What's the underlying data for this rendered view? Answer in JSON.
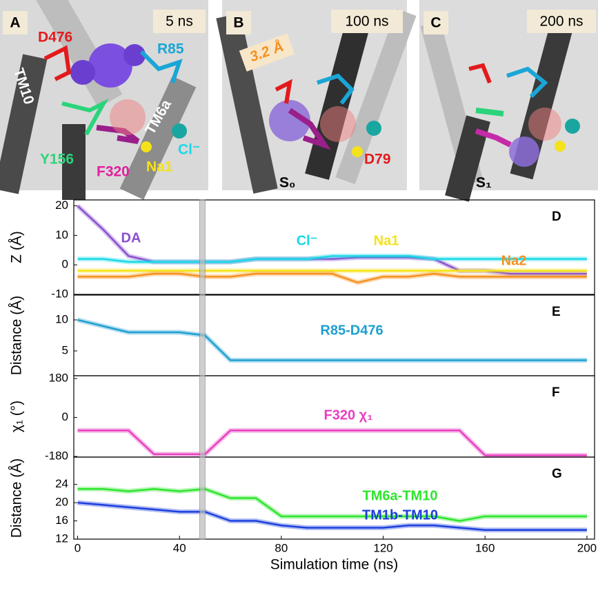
{
  "images": [
    {
      "letter": "A",
      "time": "5 ns",
      "labels": [
        "D476",
        "R85",
        "TM10",
        "TM6a",
        "Y156",
        "F320",
        "Na1",
        "Cl⁻"
      ]
    },
    {
      "letter": "B",
      "time": "100 ns",
      "labels": [
        "3.2 Å",
        "D79",
        "S₀"
      ]
    },
    {
      "letter": "C",
      "time": "200 ns",
      "labels": [
        "S₁"
      ]
    }
  ],
  "time_marker": 49,
  "chart_data": [
    {
      "type": "line",
      "panel": "D",
      "y_label": "Z (Å)",
      "xlim": [
        -1.5,
        203
      ],
      "ylim": [
        -10,
        22
      ],
      "yticks": [
        -10,
        0,
        10,
        20
      ],
      "x": [
        0,
        10,
        20,
        30,
        40,
        50,
        60,
        70,
        80,
        90,
        100,
        110,
        120,
        130,
        140,
        150,
        160,
        170,
        180,
        190,
        200
      ],
      "series": [
        {
          "name": "DA",
          "color": "#8a4fd0",
          "values": [
            20,
            12,
            3,
            1,
            1,
            1,
            1,
            2,
            2,
            2,
            2,
            2.5,
            2.5,
            2.5,
            2,
            -2,
            -2,
            -3,
            -3,
            -3,
            -3
          ]
        },
        {
          "name": "Cl⁻",
          "color": "#19d9e6",
          "values": [
            2,
            2,
            1,
            1,
            1,
            1,
            1,
            2,
            2,
            2,
            3,
            3,
            3,
            3,
            2,
            2,
            2,
            2,
            2,
            2,
            2
          ]
        },
        {
          "name": "Na1",
          "color": "#f5e21a",
          "values": [
            -2,
            -2,
            -2,
            -2,
            -2,
            -2,
            -2,
            -2,
            -2,
            -2,
            -2,
            -2,
            -2,
            -2,
            -2,
            -2,
            -2,
            -2,
            -2,
            -2,
            -2
          ]
        },
        {
          "name": "Na2",
          "color": "#f5901e",
          "values": [
            -4,
            -4,
            -4,
            -3,
            -3,
            -4,
            -4,
            -3,
            -3,
            -3,
            -3,
            -6,
            -4,
            -4,
            -3,
            -4,
            -4,
            -4,
            -4,
            -4,
            -4
          ]
        }
      ]
    },
    {
      "type": "line",
      "panel": "E",
      "y_label": "Distance (Å)",
      "xlim": [
        -1.5,
        203
      ],
      "ylim": [
        1,
        14
      ],
      "yticks": [
        5,
        10
      ],
      "x": [
        0,
        10,
        20,
        30,
        40,
        50,
        60,
        70,
        80,
        90,
        100,
        110,
        120,
        130,
        140,
        150,
        160,
        170,
        180,
        190,
        200
      ],
      "series": [
        {
          "name": "R85-D476",
          "color": "#1e9fd0",
          "values": [
            10,
            9,
            8,
            8,
            8,
            7.5,
            3.5,
            3.5,
            3.5,
            3.5,
            3.5,
            3.5,
            3.5,
            3.5,
            3.5,
            3.5,
            3.5,
            3.5,
            3.5,
            3.5,
            3.5
          ]
        }
      ]
    },
    {
      "type": "line",
      "panel": "F",
      "y_label": "χ₁ (°)",
      "xlim": [
        -1.5,
        203
      ],
      "ylim": [
        -183,
        193
      ],
      "yticks": [
        -180,
        0,
        180
      ],
      "x": [
        0,
        10,
        20,
        30,
        40,
        50,
        60,
        70,
        80,
        90,
        100,
        110,
        120,
        130,
        140,
        150,
        160,
        170,
        180,
        190,
        200
      ],
      "series": [
        {
          "name": "F320 χ₁",
          "color": "#e83fbf",
          "values": [
            -60,
            -60,
            -60,
            -170,
            -170,
            -170,
            -60,
            -60,
            -60,
            -60,
            -60,
            -60,
            -60,
            -60,
            -60,
            -60,
            -175,
            -175,
            -175,
            -175,
            -175
          ]
        }
      ]
    },
    {
      "type": "line",
      "panel": "G",
      "y_label": "Distance (Å)",
      "x_label": "Simulation time (ns)",
      "xlim": [
        -1.5,
        203
      ],
      "ylim": [
        12,
        30
      ],
      "yticks": [
        12,
        16,
        20,
        24
      ],
      "xticks": [
        0,
        40,
        80,
        120,
        160,
        200
      ],
      "x": [
        0,
        10,
        20,
        30,
        40,
        50,
        60,
        70,
        80,
        90,
        100,
        110,
        120,
        130,
        140,
        150,
        160,
        170,
        180,
        190,
        200
      ],
      "series": [
        {
          "name": "TM6a-TM10",
          "color": "#2ee52e",
          "values": [
            23,
            23,
            22.5,
            23,
            22.5,
            23,
            21,
            21,
            17,
            17,
            17,
            17,
            17,
            17,
            17,
            16,
            17,
            17,
            17,
            17,
            17
          ]
        },
        {
          "name": "TM1b-TM10",
          "color": "#1c3fdc",
          "values": [
            20,
            19.5,
            19,
            18.5,
            18,
            18,
            16,
            16,
            15,
            14.5,
            14.5,
            14.5,
            14.5,
            15,
            15,
            14.5,
            14,
            14,
            14,
            14,
            14
          ]
        }
      ]
    }
  ]
}
